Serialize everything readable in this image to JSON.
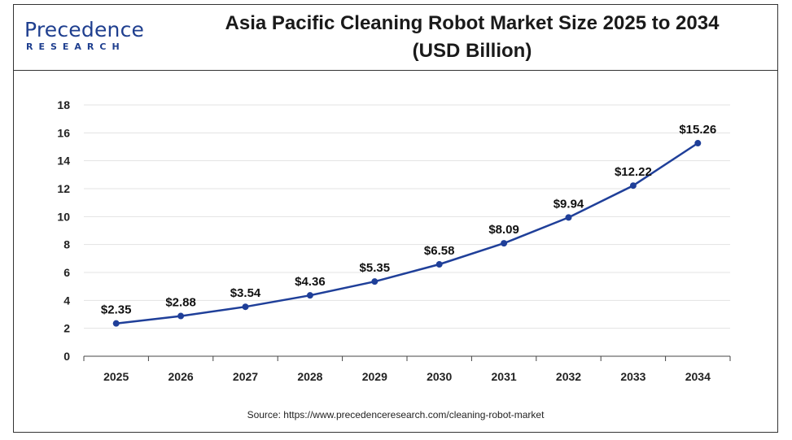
{
  "header": {
    "logo_text": "Precedence",
    "logo_subtext": "RESEARCH",
    "title_line1": "Asia Pacific Cleaning Robot Market Size 2025 to 2034",
    "title_line2": "(USD Billion)"
  },
  "source": "Source: https://www.precedenceresearch.com/cleaning-robot-market",
  "colors": {
    "line": "#1f3f99",
    "point": "#1f3f99",
    "grid": "#e3e3e3",
    "axis": "#444444"
  },
  "chart_data": {
    "type": "line",
    "title": "Asia Pacific Cleaning Robot Market Size 2025 to 2034 (USD Billion)",
    "xlabel": "",
    "ylabel": "",
    "categories": [
      "2025",
      "2026",
      "2027",
      "2028",
      "2029",
      "2030",
      "2031",
      "2032",
      "2033",
      "2034"
    ],
    "values": [
      2.35,
      2.88,
      3.54,
      4.36,
      5.35,
      6.58,
      8.09,
      9.94,
      12.22,
      15.26
    ],
    "data_labels": [
      "$2.35",
      "$2.88",
      "$3.54",
      "$4.36",
      "$5.35",
      "$6.58",
      "$8.09",
      "$9.94",
      "$12.22",
      "$15.26"
    ],
    "ylim": [
      0,
      18
    ],
    "yticks": [
      0,
      2,
      4,
      6,
      8,
      10,
      12,
      14,
      16,
      18
    ],
    "grid": true,
    "legend": "none"
  }
}
